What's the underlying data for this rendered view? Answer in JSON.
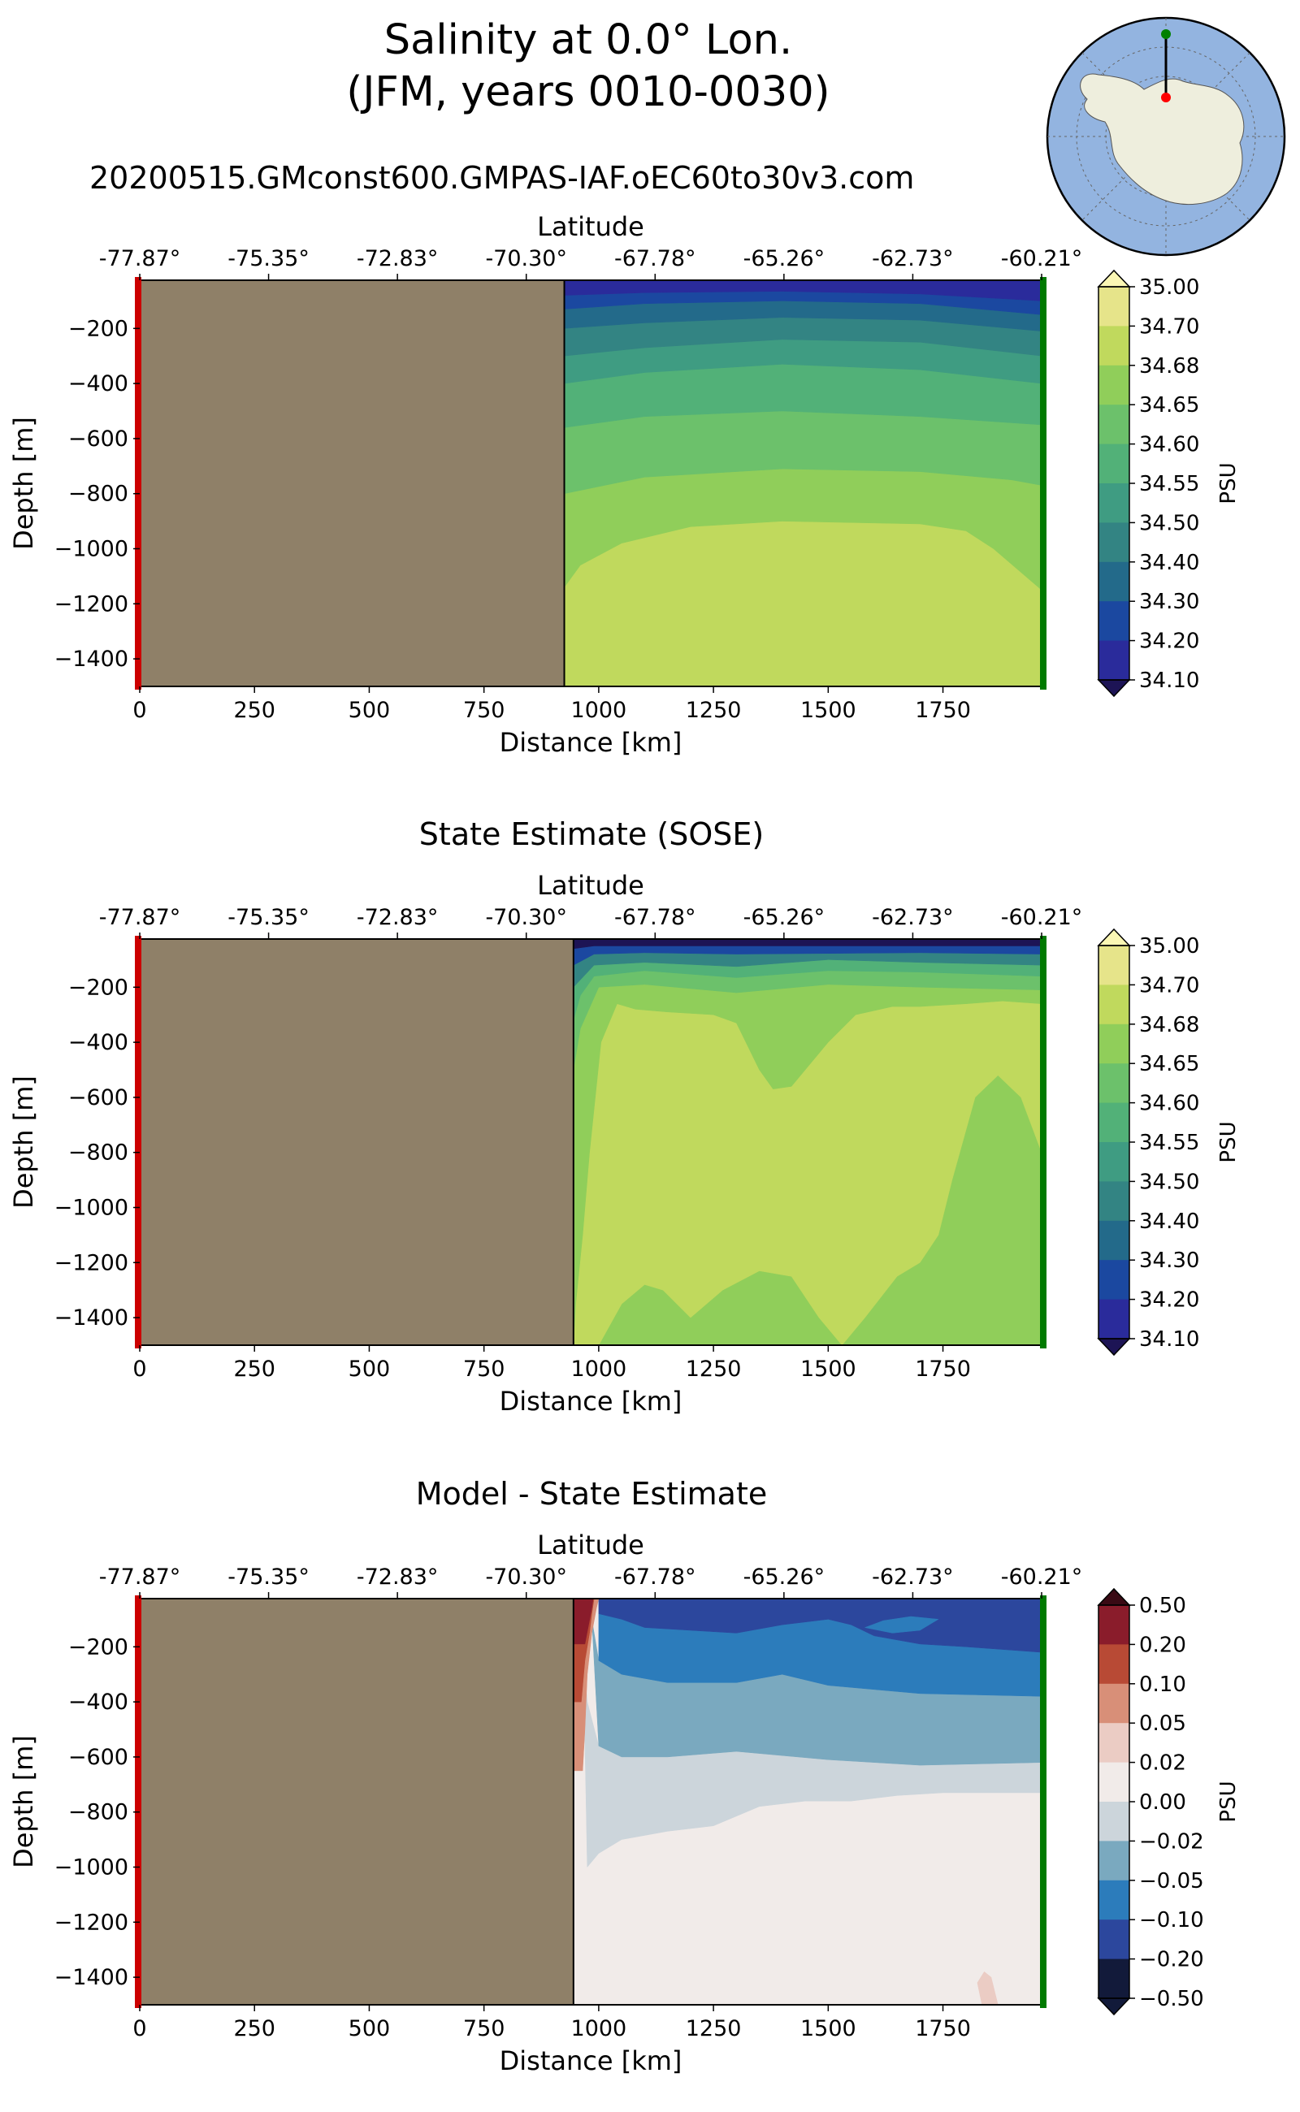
{
  "figure": {
    "title_line1": "Salinity at 0.0° Lon.",
    "title_line2": "(JFM, years 0010-0030)",
    "run_name": "20200515.GMconst600.GMPAS-IAF.oEC60to30v3.com"
  },
  "inset_map": {
    "description_icon": "antarctic-stereographic-map-icon",
    "ocean_color": "#93b4e0",
    "land_color": "#eeeedd",
    "start_marker_color": "#008000",
    "end_marker_color": "#ff0000"
  },
  "colors": {
    "land_mask": "#8f8068",
    "section_start_bar": "#cc0000",
    "section_end_bar": "#007a00"
  },
  "chart_data": [
    {
      "type": "contourf",
      "title": "",
      "xlabel": "Distance [km]",
      "ylabel": "Depth [m]",
      "top_axis_label": "Latitude",
      "xlim": [
        0,
        1965
      ],
      "ylim": [
        -1500,
        -25
      ],
      "x_ticks": [
        0,
        250,
        500,
        750,
        1000,
        1250,
        1500,
        1750
      ],
      "y_ticks": [
        -200,
        -400,
        -600,
        -800,
        -1000,
        -1200,
        -1400
      ],
      "lat_ticks": [
        "-77.87°",
        "-75.35°",
        "-72.83°",
        "-70.30°",
        "-67.78°",
        "-65.26°",
        "-62.73°",
        "-60.21°"
      ],
      "land_until_km": 925,
      "colorbar": {
        "label": "PSU",
        "ticks": [
          "35.00",
          "34.70",
          "34.68",
          "34.65",
          "34.60",
          "34.55",
          "34.50",
          "34.40",
          "34.30",
          "34.20",
          "34.10"
        ],
        "colors": [
          "#fbf7b4",
          "#e6e48a",
          "#c0d95d",
          "#90ce5a",
          "#6cc16b",
          "#52b178",
          "#3f9c82",
          "#338483",
          "#236a8a",
          "#1b48a0",
          "#2a2b9b",
          "#1d1455"
        ],
        "extend": "both"
      }
    },
    {
      "type": "contourf",
      "title": "State Estimate (SOSE)",
      "xlabel": "Distance [km]",
      "ylabel": "Depth [m]",
      "top_axis_label": "Latitude",
      "xlim": [
        0,
        1965
      ],
      "ylim": [
        -1500,
        -25
      ],
      "x_ticks": [
        0,
        250,
        500,
        750,
        1000,
        1250,
        1500,
        1750
      ],
      "y_ticks": [
        -200,
        -400,
        -600,
        -800,
        -1000,
        -1200,
        -1400
      ],
      "lat_ticks": [
        "-77.87°",
        "-75.35°",
        "-72.83°",
        "-70.30°",
        "-67.78°",
        "-65.26°",
        "-62.73°",
        "-60.21°"
      ],
      "land_until_km": 945,
      "colorbar": {
        "label": "PSU",
        "ticks": [
          "35.00",
          "34.70",
          "34.68",
          "34.65",
          "34.60",
          "34.55",
          "34.50",
          "34.40",
          "34.30",
          "34.20",
          "34.10"
        ],
        "colors": [
          "#fbf7b4",
          "#e6e48a",
          "#c0d95d",
          "#90ce5a",
          "#6cc16b",
          "#52b178",
          "#3f9c82",
          "#338483",
          "#236a8a",
          "#1b48a0",
          "#2a2b9b",
          "#1d1455"
        ],
        "extend": "both"
      }
    },
    {
      "type": "contourf",
      "title": "Model - State Estimate",
      "xlabel": "Distance [km]",
      "ylabel": "Depth [m]",
      "top_axis_label": "Latitude",
      "xlim": [
        0,
        1965
      ],
      "ylim": [
        -1500,
        -25
      ],
      "x_ticks": [
        0,
        250,
        500,
        750,
        1000,
        1250,
        1500,
        1750
      ],
      "y_ticks": [
        -200,
        -400,
        -600,
        -800,
        -1000,
        -1200,
        -1400
      ],
      "lat_ticks": [
        "-77.87°",
        "-75.35°",
        "-72.83°",
        "-70.30°",
        "-67.78°",
        "-65.26°",
        "-62.73°",
        "-60.21°"
      ],
      "land_until_km": 945,
      "colorbar": {
        "label": "PSU",
        "ticks": [
          "0.50",
          "0.20",
          "0.10",
          "0.05",
          "0.02",
          "0.00",
          "−0.02",
          "−0.05",
          "−0.10",
          "−0.20",
          "−0.50"
        ],
        "colors": [
          "#3a0a14",
          "#8a1c2b",
          "#b84a35",
          "#d88f78",
          "#ebccc4",
          "#f1ebe9",
          "#ccd5db",
          "#7aa9bf",
          "#2c7cbb",
          "#2c479d",
          "#121a3a"
        ],
        "extend": "both"
      }
    }
  ]
}
